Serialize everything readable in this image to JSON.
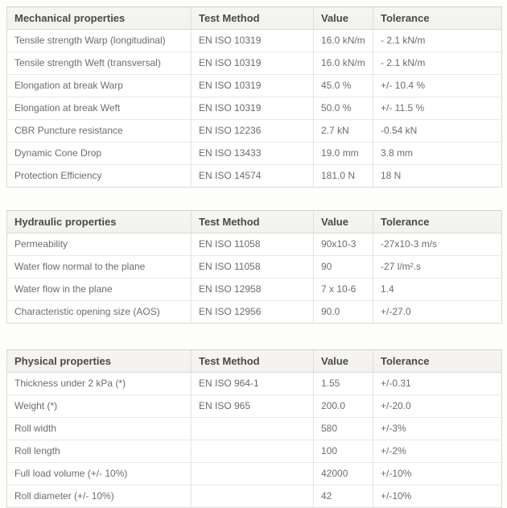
{
  "page": {
    "background_color": "#fdfdf9",
    "table_background_color": "#ffffff",
    "header_background_color": "#f4f3ef",
    "header_text_color": "#4b4a47",
    "body_text_color": "#6d6c6a",
    "border_color": "#dbdad6"
  },
  "tables": [
    {
      "title": "Mechanical properties",
      "columns": [
        "Test Method",
        "Value",
        "Tolerance"
      ],
      "rows": [
        {
          "property": "Tensile strength Warp (longitudinal)",
          "test_method": "EN ISO 10319",
          "value": "16.0 kN/m",
          "tolerance": "- 2.1 kN/m"
        },
        {
          "property": "Tensile strength Weft (transversal)",
          "test_method": "EN ISO 10319",
          "value": "16.0 kN/m",
          "tolerance": "- 2.1 kN/m"
        },
        {
          "property": "Elongation at break Warp",
          "test_method": "EN ISO 10319",
          "value": "45.0 %",
          "tolerance": "+/- 10.4 %"
        },
        {
          "property": "Elongation at break Weft",
          "test_method": "EN ISO 10319",
          "value": "50.0 %",
          "tolerance": "+/- 11.5 %"
        },
        {
          "property": "CBR Puncture resistance",
          "test_method": "EN ISO 12236",
          "value": "2.7 kN",
          "tolerance": "-0.54 kN"
        },
        {
          "property": "Dynamic Cone Drop",
          "test_method": "EN ISO 13433",
          "value": "19.0 mm",
          "tolerance": "3.8 mm"
        },
        {
          "property": "Protection Efficiency",
          "test_method": "EN ISO 14574",
          "value": "181.0 N",
          "tolerance": "18 N"
        }
      ]
    },
    {
      "title": "Hydraulic properties",
      "columns": [
        "Test Method",
        "Value",
        "Tolerance"
      ],
      "rows": [
        {
          "property": "Permeability",
          "test_method": "EN ISO 11058",
          "value": "90x10-3",
          "tolerance": "-27x10-3 m/s"
        },
        {
          "property": "Water flow normal to the plane",
          "test_method": "EN ISO 11058",
          "value": "90",
          "tolerance": "-27 l/m².s"
        },
        {
          "property": "Water flow in the plane",
          "test_method": "EN ISO 12958",
          "value": "7 x 10-6",
          "tolerance": "1.4"
        },
        {
          "property": "Characteristic opening size (AOS)",
          "test_method": "EN ISO 12956",
          "value": "90.0",
          "tolerance": "+/-27.0"
        }
      ]
    },
    {
      "title": "Physical properties",
      "columns": [
        "Test Method",
        "Value",
        "Tolerance"
      ],
      "rows": [
        {
          "property": "Thickness under 2 kPa (*)",
          "test_method": "EN ISO 964-1",
          "value": "1.55",
          "tolerance": "+/-0.31"
        },
        {
          "property": "Weight (*)",
          "test_method": "EN ISO 965",
          "value": "200.0",
          "tolerance": "+/-20.0"
        },
        {
          "property": "Roll width",
          "test_method": "",
          "value": "580",
          "tolerance": "+/-3%"
        },
        {
          "property": "Roll length",
          "test_method": "",
          "value": "100",
          "tolerance": "+/-2%"
        },
        {
          "property": "Full load volume (+/- 10%)",
          "test_method": "",
          "value": "42000",
          "tolerance": "+/-10%"
        },
        {
          "property": "Roll diameter (+/- 10%)",
          "test_method": "",
          "value": "42",
          "tolerance": "+/-10%"
        }
      ]
    }
  ]
}
